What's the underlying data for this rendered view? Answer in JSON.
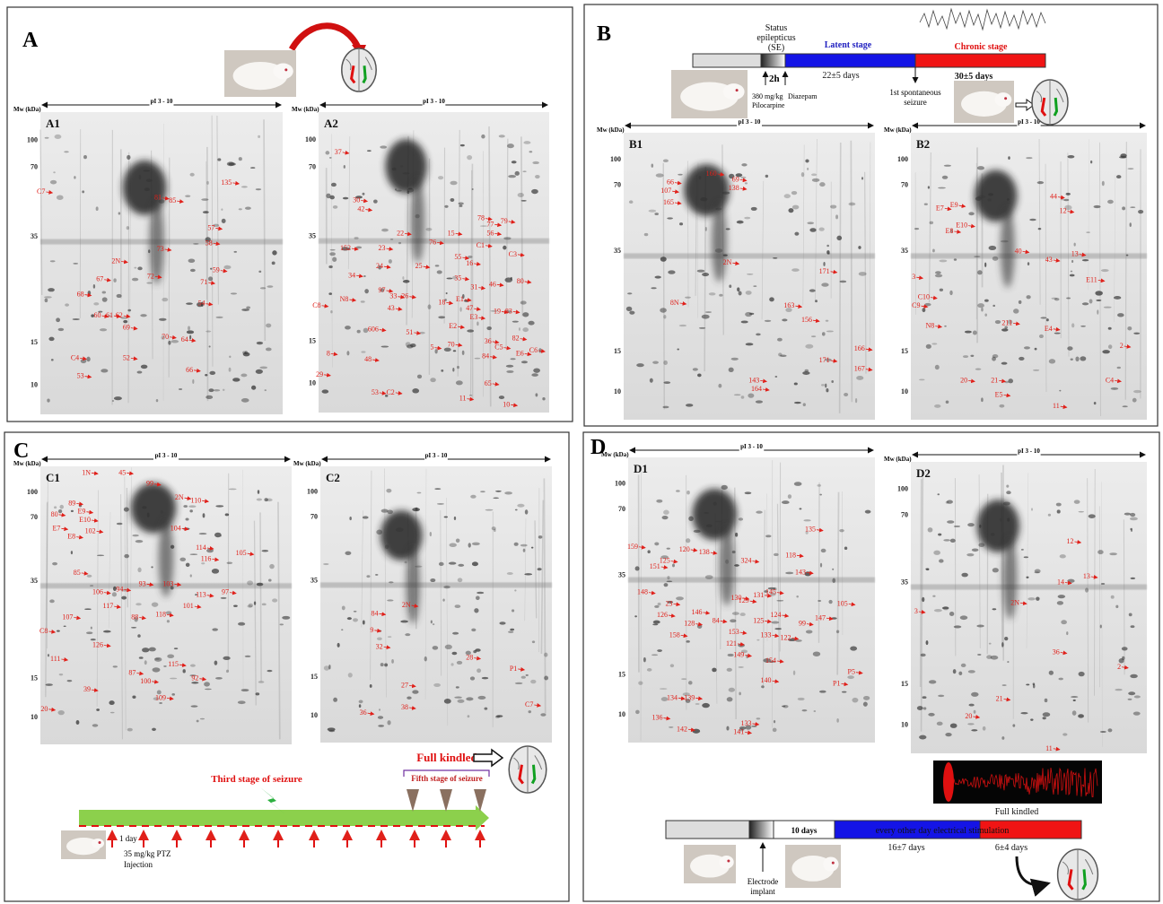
{
  "panels": [
    {
      "letter": "A",
      "gels": [
        {
          "label": "A1",
          "mw_title": "Mw (kDa)",
          "pi_title": "pI 3 - 10",
          "mw_ticks": [
            "100",
            "70",
            "35",
            "15",
            "10"
          ],
          "spots": [
            "C7",
            "81",
            "85",
            "135",
            "57",
            "58",
            "73",
            "2N",
            "72",
            "59",
            "67",
            "71",
            "68",
            "54",
            "60",
            "61",
            "62",
            "69",
            "70",
            "64",
            "C4",
            "52",
            "66",
            "53"
          ]
        },
        {
          "label": "A2",
          "mw_title": "Mw (kDa)",
          "pi_title": "pI 3 - 10",
          "mw_ticks": [
            "100",
            "70",
            "35",
            "15",
            "10"
          ],
          "spots": [
            "37",
            "30",
            "42",
            "78",
            "77",
            "79",
            "56",
            "C1",
            "152",
            "23",
            "22",
            "76",
            "15",
            "C3",
            "55",
            "24",
            "25",
            "34",
            "16",
            "35",
            "31",
            "46",
            "80",
            "97",
            "33",
            "26",
            "N8",
            "E1",
            "47",
            "19",
            "83",
            "43",
            "18",
            "C8",
            "E3",
            "606",
            "51",
            "E2",
            "82",
            "36",
            "70",
            "5",
            "8",
            "48",
            "C5",
            "E6",
            "C6",
            "84",
            "29",
            "65",
            "53",
            "C2",
            "11",
            "10"
          ]
        }
      ]
    },
    {
      "letter": "B",
      "gels": [
        {
          "label": "B1",
          "mw_title": "Mw (kDa)",
          "pi_title": "pI 3 - 10",
          "mw_ticks": [
            "100",
            "70",
            "35",
            "15",
            "10"
          ],
          "spots": [
            "66",
            "107",
            "165",
            "160",
            "69",
            "138",
            "2N",
            "171",
            "8N",
            "163",
            "156",
            "166",
            "167",
            "143",
            "164",
            "171"
          ]
        },
        {
          "label": "B2",
          "mw_title": "Mw (kDa)",
          "pi_title": "pI 3 - 10",
          "mw_ticks": [
            "100",
            "70",
            "35",
            "15",
            "10"
          ],
          "spots": [
            "E7",
            "E9",
            "E8",
            "E10",
            "44",
            "12",
            "40",
            "43",
            "13",
            "3",
            "E11",
            "C10",
            "C9",
            "N8",
            "211",
            "E4",
            "2",
            "20",
            "21",
            "C4",
            "E5",
            "11"
          ]
        }
      ],
      "timeline": {
        "status": [
          "Status",
          "epilepticus",
          "(SE)"
        ],
        "latent": "Latent stage",
        "chronic": "Chronic stage",
        "hours": "2h",
        "latent_days": "22±5 days",
        "chronic_days": "30±5 days",
        "dose": [
          "380 mg/kg",
          "Pilocarpine"
        ],
        "diazepam": "Diazepam",
        "first_seizure": [
          "1st spontaneous",
          "seizure"
        ]
      }
    },
    {
      "letter": "C",
      "gels": [
        {
          "label": "C1",
          "mw_title": "Mw (kDa)",
          "pi_title": "pI 3 - 10",
          "mw_ticks": [
            "100",
            "70",
            "35",
            "15",
            "10"
          ],
          "spots": [
            "1N",
            "45",
            "99",
            "89",
            "E9",
            "80",
            "E10",
            "E7",
            "102",
            "E8",
            "2N",
            "110",
            "104",
            "114",
            "116",
            "105",
            "85",
            "106",
            "94",
            "93",
            "103",
            "113",
            "97",
            "117",
            "101",
            "118",
            "88",
            "107",
            "C8",
            "126",
            "111",
            "87",
            "100",
            "115",
            "92",
            "39",
            "109",
            "20"
          ]
        },
        {
          "label": "C2",
          "mw_title": "Mw (kDa)",
          "pi_title": "pI 3 - 10",
          "mw_ticks": [
            "100",
            "70",
            "35",
            "15",
            "10"
          ],
          "spots": [
            "84",
            "2N",
            "9",
            "32",
            "28",
            "P1",
            "27",
            "38",
            "36",
            "C7"
          ]
        }
      ],
      "timeline": {
        "third_stage": "Third stage of seizure",
        "full_kindled": "Full kindled",
        "fifth_stage": "Fifth stage of seizure",
        "day": "1 day",
        "dose": [
          "35 mg/kg PTZ",
          "Injection"
        ]
      }
    },
    {
      "letter": "D",
      "gels": [
        {
          "label": "D1",
          "mw_title": "Mw (kDa)",
          "pi_title": "pI 3 - 10",
          "mw_ticks": [
            "100",
            "70",
            "35",
            "15",
            "10"
          ],
          "spots": [
            "159",
            "125",
            "120",
            "138",
            "151",
            "324",
            "135",
            "118",
            "143",
            "148",
            "23",
            "130",
            "129",
            "131",
            "145",
            "126",
            "146",
            "124",
            "105",
            "128",
            "84",
            "125",
            "99",
            "147",
            "158",
            "153",
            "133",
            "122",
            "121",
            "149",
            "154",
            "140",
            "P1",
            "P5",
            "134",
            "139",
            "136",
            "142",
            "133",
            "141"
          ]
        },
        {
          "label": "D2",
          "mw_title": "Mw (kDa)",
          "pi_title": "pI 3 - 10",
          "mw_ticks": [
            "100",
            "70",
            "35",
            "15",
            "10"
          ],
          "spots": [
            "12",
            "13",
            "14",
            "2N",
            "3",
            "36",
            "2",
            "21",
            "20",
            "11"
          ]
        }
      ],
      "timeline": {
        "full_kindled": "Full kindled",
        "implant_days": "10 days",
        "stimulation": "every other day electrical stimulation",
        "stim_days": "16±7 days",
        "kindled_days": "6±4 days",
        "implant": [
          "Electrode",
          "implant"
        ]
      }
    }
  ]
}
